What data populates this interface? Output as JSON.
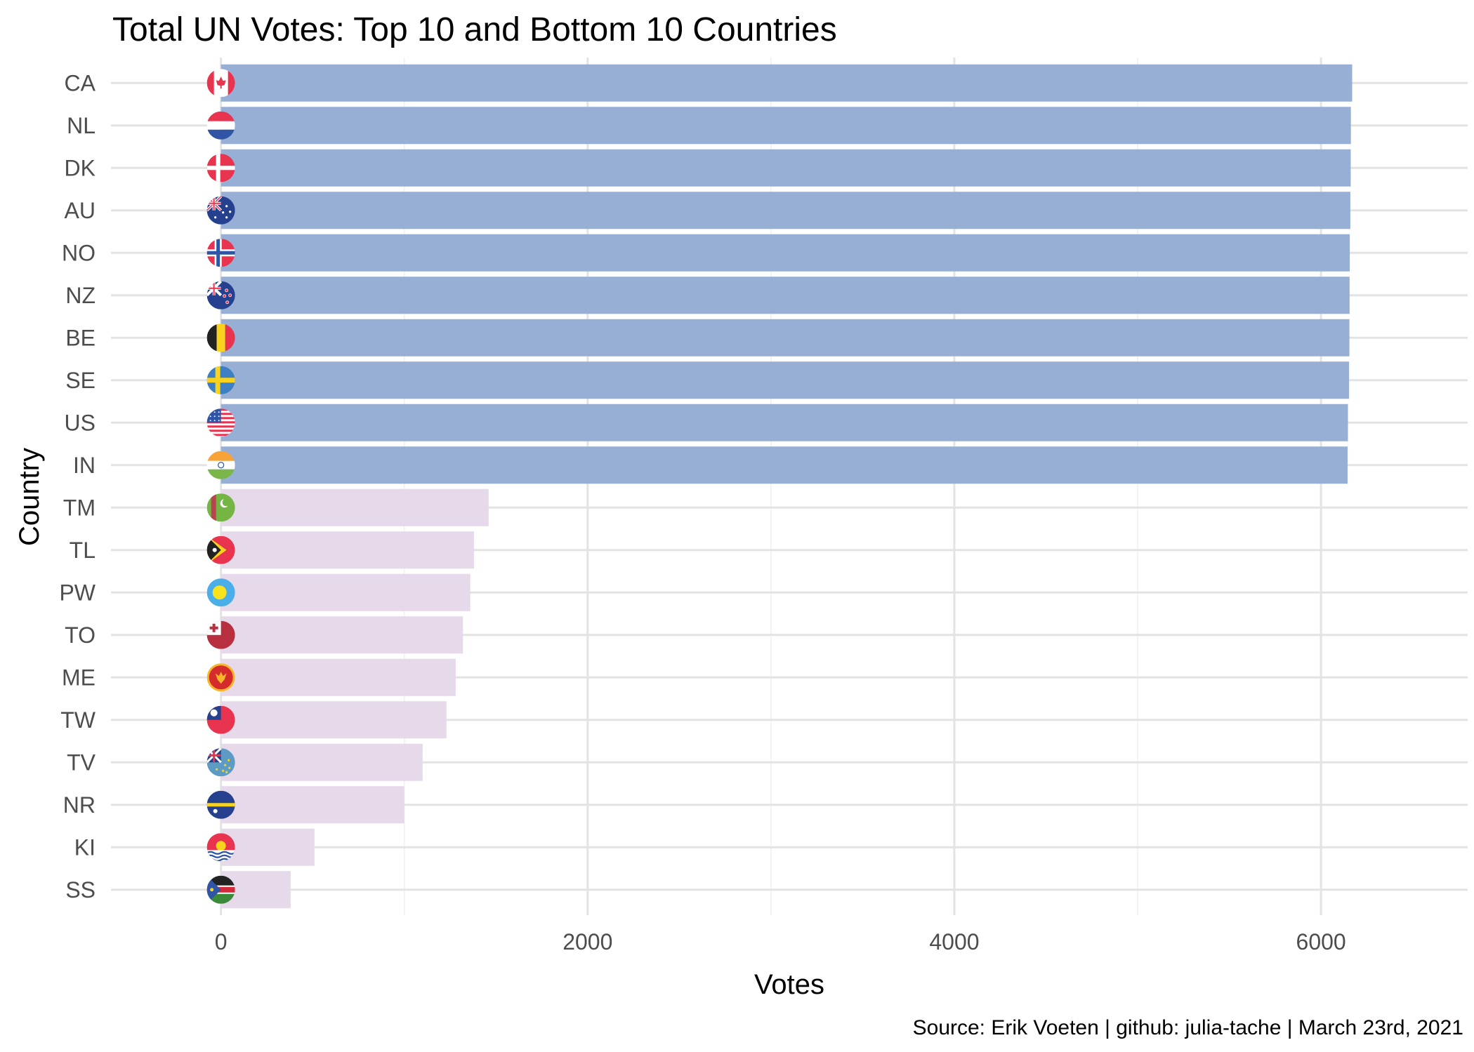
{
  "colors": {
    "top": "#97afd5",
    "bottom": "#e6d9ea"
  },
  "chart_data": {
    "type": "bar",
    "orientation": "horizontal",
    "title": "Total UN Votes: Top 10 and Bottom 10 Countries",
    "xlabel": "Votes",
    "ylabel": "Country",
    "caption": "Source: Erik Voeten | github: julia-tache | March 23rd, 2021",
    "xlim": [
      -600,
      6800
    ],
    "xticks": [
      0,
      2000,
      4000,
      6000
    ],
    "xtick_labels": [
      "0",
      "2000",
      "4000",
      "6000"
    ],
    "grid": true,
    "legend": "none",
    "categories": [
      "CA",
      "NL",
      "DK",
      "AU",
      "NO",
      "NZ",
      "BE",
      "SE",
      "US",
      "IN",
      "TM",
      "TL",
      "PW",
      "TO",
      "ME",
      "TW",
      "TV",
      "NR",
      "KI",
      "SS"
    ],
    "values": [
      6170,
      6163,
      6162,
      6160,
      6157,
      6156,
      6155,
      6153,
      6147,
      6145,
      1460,
      1380,
      1360,
      1320,
      1280,
      1230,
      1100,
      1000,
      510,
      380
    ],
    "group": [
      "top",
      "top",
      "top",
      "top",
      "top",
      "top",
      "top",
      "top",
      "top",
      "top",
      "bottom",
      "bottom",
      "bottom",
      "bottom",
      "bottom",
      "bottom",
      "bottom",
      "bottom",
      "bottom",
      "bottom"
    ],
    "flag_icons": [
      "canada-flag-icon",
      "netherlands-flag-icon",
      "denmark-flag-icon",
      "australia-flag-icon",
      "norway-flag-icon",
      "new-zealand-flag-icon",
      "belgium-flag-icon",
      "sweden-flag-icon",
      "usa-flag-icon",
      "india-flag-icon",
      "turkmenistan-flag-icon",
      "timor-leste-flag-icon",
      "palau-flag-icon",
      "tonga-flag-icon",
      "montenegro-flag-icon",
      "taiwan-flag-icon",
      "tuvalu-flag-icon",
      "nauru-flag-icon",
      "kiribati-flag-icon",
      "south-sudan-flag-icon"
    ]
  }
}
